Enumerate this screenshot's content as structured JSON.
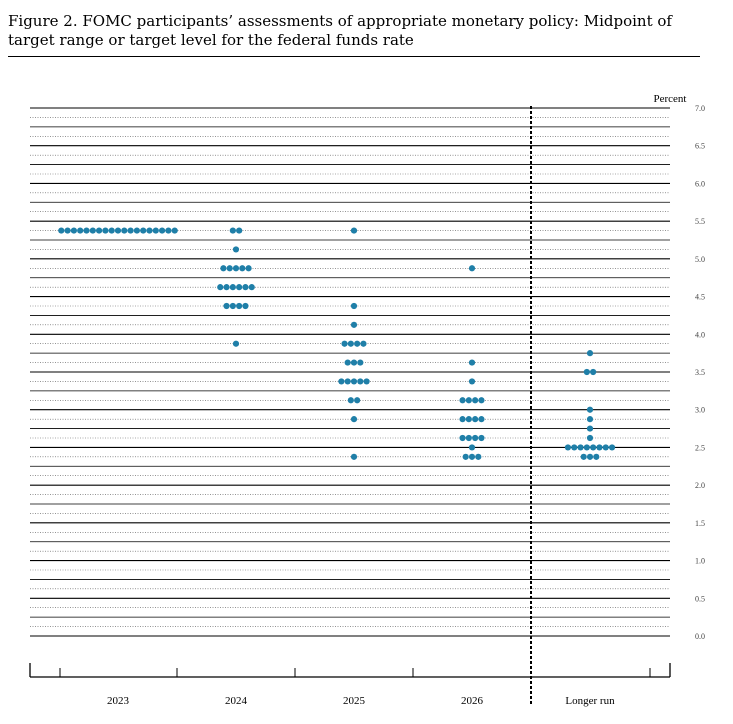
{
  "figure": {
    "title": "Figure 2.  FOMC participants’ assessments of appropriate monetary policy:  Midpoint of target range or target level for the federal funds rate"
  },
  "chart_data": {
    "type": "scatter",
    "unit_label": "Percent",
    "ylim": [
      0.0,
      7.0
    ],
    "yticks": [
      "0.0",
      "0.5",
      "1.0",
      "1.5",
      "2.0",
      "2.5",
      "3.0",
      "3.5",
      "4.0",
      "4.5",
      "5.0",
      "5.5",
      "6.0",
      "6.5",
      "7.0"
    ],
    "categories": [
      "2023",
      "2024",
      "2025",
      "2026",
      "Longer run"
    ],
    "dot_color": "#1f7fa8",
    "series": [
      {
        "category": "2023",
        "dots": [
          {
            "y": 5.375,
            "count": 19
          }
        ]
      },
      {
        "category": "2024",
        "dots": [
          {
            "y": 5.375,
            "count": 2
          },
          {
            "y": 5.125,
            "count": 1
          },
          {
            "y": 4.875,
            "count": 5
          },
          {
            "y": 4.625,
            "count": 6
          },
          {
            "y": 4.375,
            "count": 4
          },
          {
            "y": 3.875,
            "count": 1
          }
        ]
      },
      {
        "category": "2025",
        "dots": [
          {
            "y": 5.375,
            "count": 1
          },
          {
            "y": 4.375,
            "count": 1
          },
          {
            "y": 4.125,
            "count": 1
          },
          {
            "y": 3.875,
            "count": 4
          },
          {
            "y": 3.625,
            "count": 3
          },
          {
            "y": 3.375,
            "count": 5
          },
          {
            "y": 3.125,
            "count": 2
          },
          {
            "y": 2.875,
            "count": 1
          },
          {
            "y": 2.375,
            "count": 1
          }
        ]
      },
      {
        "category": "2026",
        "dots": [
          {
            "y": 4.875,
            "count": 1
          },
          {
            "y": 3.625,
            "count": 1
          },
          {
            "y": 3.375,
            "count": 1
          },
          {
            "y": 3.125,
            "count": 4
          },
          {
            "y": 2.875,
            "count": 4
          },
          {
            "y": 2.625,
            "count": 4
          },
          {
            "y": 2.5,
            "count": 1
          },
          {
            "y": 2.375,
            "count": 3
          }
        ]
      },
      {
        "category": "Longer run",
        "dots": [
          {
            "y": 3.75,
            "count": 1
          },
          {
            "y": 3.5,
            "count": 2
          },
          {
            "y": 3.0,
            "count": 1
          },
          {
            "y": 2.875,
            "count": 1
          },
          {
            "y": 2.75,
            "count": 1
          },
          {
            "y": 2.625,
            "count": 1
          },
          {
            "y": 2.5,
            "count": 8
          },
          {
            "y": 2.375,
            "count": 3
          }
        ]
      }
    ],
    "grid": true
  }
}
